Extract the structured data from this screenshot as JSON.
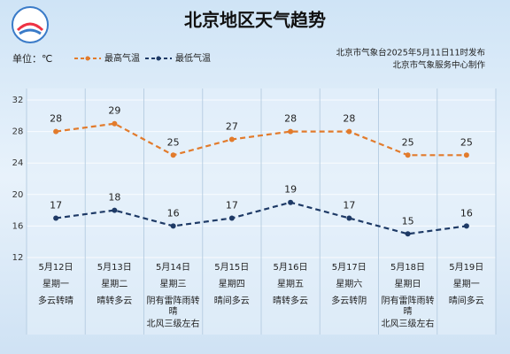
{
  "chart_data": {
    "type": "line",
    "title": "北京地区天气趋势",
    "unit_label": "单位：℃",
    "notes": [
      "北京市气象台2025年5月11日11时发布",
      "北京市气象服务中心制作"
    ],
    "categories": [
      "5月12日",
      "5月13日",
      "5月14日",
      "5月15日",
      "5月16日",
      "5月17日",
      "5月18日",
      "5月19日"
    ],
    "weekdays": [
      "星期一",
      "星期二",
      "星期三",
      "星期四",
      "星期五",
      "星期六",
      "星期日",
      "星期一"
    ],
    "weather": [
      "多云转晴",
      "晴转多云",
      "阴有雷阵雨转晴",
      "晴间多云",
      "晴转多云",
      "多云转阴",
      "阴有雷阵雨转晴",
      "晴间多云"
    ],
    "wind": [
      null,
      null,
      "北风三级左右",
      null,
      null,
      null,
      "北风三级左右",
      null
    ],
    "series": [
      {
        "name": "最高气温",
        "color": "#e27b2c",
        "values": [
          28,
          29,
          25,
          27,
          28,
          28,
          25,
          25
        ]
      },
      {
        "name": "最低气温",
        "color": "#1e3a66",
        "values": [
          17,
          18,
          16,
          17,
          19,
          17,
          15,
          16
        ]
      }
    ],
    "ylim": [
      12,
      32
    ],
    "yticks": [
      12,
      16,
      20,
      24,
      28,
      32
    ],
    "grid": true
  }
}
